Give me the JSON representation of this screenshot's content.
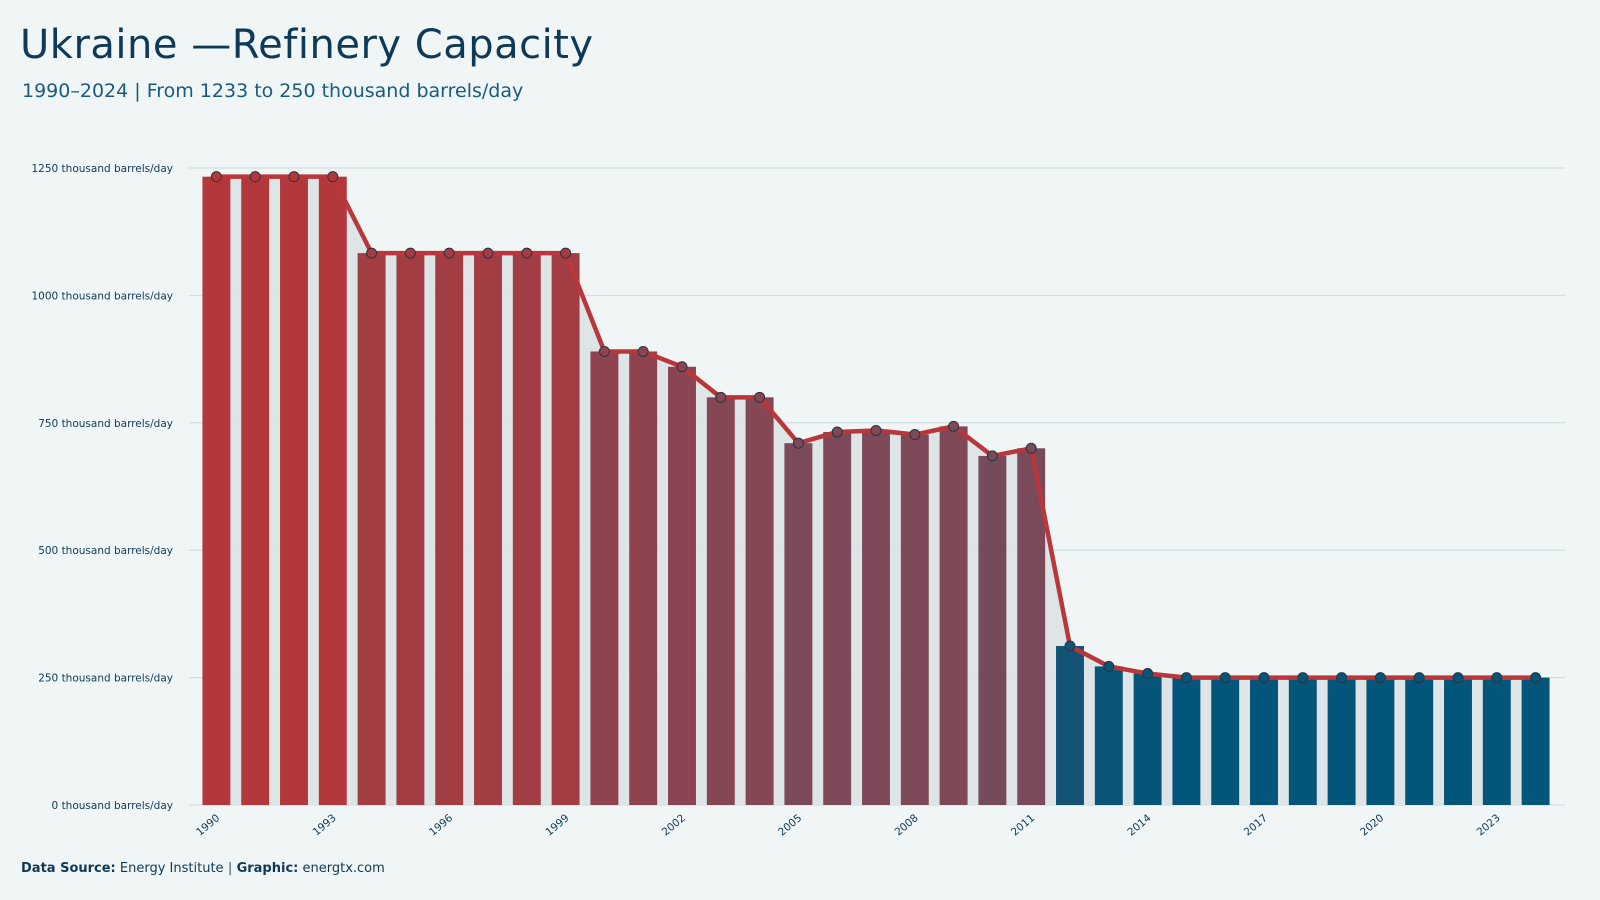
{
  "header": {
    "title": "Ukraine —Refinery Capacity",
    "subtitle": "1990–2024 | From 1233 to 250 thousand barrels/day"
  },
  "footer": {
    "source_label": "Data Source:",
    "source_value": "Energy Institute",
    "separator": "|",
    "graphic_label": "Graphic:",
    "graphic_value": "energtx.com"
  },
  "colors": {
    "start": "#b5373a",
    "mid": "#7a4a5a",
    "end": "#04557a",
    "line": "#b9373a",
    "area": "#dbe3e6",
    "grid": "#c9dade"
  },
  "chart_data": {
    "type": "bar",
    "x": [
      1990,
      1991,
      1992,
      1993,
      1994,
      1995,
      1996,
      1997,
      1998,
      1999,
      2000,
      2001,
      2002,
      2003,
      2004,
      2005,
      2006,
      2007,
      2008,
      2009,
      2010,
      2011,
      2012,
      2013,
      2014,
      2015,
      2016,
      2017,
      2018,
      2019,
      2020,
      2021,
      2022,
      2023,
      2024
    ],
    "values": [
      1233,
      1233,
      1233,
      1233,
      1083,
      1083,
      1083,
      1083,
      1083,
      1083,
      890,
      890,
      860,
      800,
      800,
      710,
      732,
      735,
      727,
      743,
      685,
      700,
      312,
      272,
      258,
      250,
      250,
      250,
      250,
      250,
      250,
      250,
      250,
      250,
      250
    ],
    "x_tick_labels": [
      "1990",
      "1993",
      "1996",
      "1999",
      "2002",
      "2005",
      "2008",
      "2011",
      "2014",
      "2017",
      "2020",
      "2023"
    ],
    "y_ticks": [
      0,
      250,
      500,
      750,
      1000,
      1250
    ],
    "y_tick_labels": [
      "0 thousand barrels/day",
      "250 thousand barrels/day",
      "500 thousand barrels/day",
      "750 thousand barrels/day",
      "1000 thousand barrels/day",
      "1250 thousand barrels/day"
    ],
    "ylim": [
      0,
      1250
    ],
    "grid": true,
    "overlay": "line with markers"
  }
}
